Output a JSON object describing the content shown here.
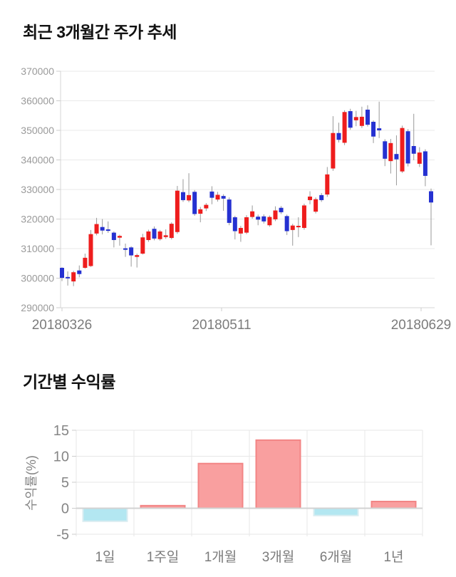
{
  "page": {
    "background": "#ffffff"
  },
  "chart_data": [
    {
      "type": "candlestick",
      "title": "최근 3개월간 주가 추세",
      "ylabel": "",
      "xlabel": "",
      "ylim": [
        290000,
        370000
      ],
      "yticks": [
        370000,
        360000,
        350000,
        340000,
        330000,
        320000,
        310000,
        300000,
        290000
      ],
      "xticks": [
        "20180326",
        "20180511",
        "20180629"
      ],
      "grid": "horizontal",
      "legend": false,
      "up_color": "#ee1d1d",
      "down_color": "#2531d1",
      "wick_color": "#999999",
      "candles_ohlc": [
        [
          303500,
          303700,
          299000,
          300100
        ],
        [
          300400,
          302300,
          297500,
          300000
        ],
        [
          298900,
          302500,
          297300,
          302000
        ],
        [
          302600,
          304300,
          300300,
          301400
        ],
        [
          303500,
          308300,
          303200,
          306900
        ],
        [
          304100,
          316300,
          303800,
          314900
        ],
        [
          315100,
          320400,
          314500,
          318300
        ],
        [
          317300,
          320000,
          314800,
          316100
        ],
        [
          316500,
          319200,
          315300,
          316000
        ],
        [
          315400,
          315800,
          310400,
          312900
        ],
        [
          313700,
          314700,
          311000,
          314300
        ],
        [
          310100,
          311700,
          307200,
          309600
        ],
        [
          310400,
          310800,
          303900,
          307700
        ],
        [
          307200,
          308300,
          303600,
          307800
        ],
        [
          308300,
          315000,
          308000,
          313800
        ],
        [
          312900,
          316400,
          312300,
          315800
        ],
        [
          316700,
          317500,
          312800,
          313400
        ],
        [
          313200,
          316300,
          312700,
          315800
        ],
        [
          313900,
          316500,
          313300,
          314500
        ],
        [
          313600,
          318900,
          313100,
          318400
        ],
        [
          315600,
          331200,
          315000,
          329600
        ],
        [
          329100,
          333500,
          325800,
          326400
        ],
        [
          326300,
          335500,
          325700,
          328100
        ],
        [
          329200,
          329800,
          321100,
          321700
        ],
        [
          321800,
          324100,
          318900,
          323300
        ],
        [
          323600,
          325400,
          322700,
          324800
        ],
        [
          329300,
          331100,
          325000,
          327200
        ],
        [
          326600,
          329200,
          325900,
          328200
        ],
        [
          327800,
          328400,
          322800,
          326900
        ],
        [
          326600,
          327300,
          317900,
          318700
        ],
        [
          320600,
          321100,
          313100,
          315900
        ],
        [
          315100,
          317700,
          312300,
          317000
        ],
        [
          315400,
          321300,
          314900,
          320600
        ],
        [
          320700,
          324600,
          320100,
          322600
        ],
        [
          320800,
          321500,
          317900,
          319800
        ],
        [
          320900,
          321600,
          318500,
          319200
        ],
        [
          317900,
          321200,
          317400,
          320700
        ],
        [
          319900,
          324300,
          319300,
          322900
        ],
        [
          323800,
          324400,
          321700,
          322300
        ],
        [
          321000,
          321500,
          314600,
          315900
        ],
        [
          316300,
          318400,
          311000,
          317800
        ],
        [
          317300,
          320600,
          313900,
          317700
        ],
        [
          317000,
          325200,
          316400,
          324600
        ],
        [
          326400,
          329400,
          325000,
          327600
        ],
        [
          322500,
          327300,
          321900,
          326700
        ],
        [
          328100,
          328800,
          325800,
          326400
        ],
        [
          328300,
          337600,
          327500,
          335100
        ],
        [
          337100,
          354800,
          336300,
          349100
        ],
        [
          349100,
          352600,
          345900,
          346800
        ],
        [
          345800,
          356800,
          345000,
          356200
        ],
        [
          356500,
          357300,
          350200,
          350900
        ],
        [
          353400,
          356600,
          351400,
          354500
        ],
        [
          351500,
          358000,
          350800,
          354600
        ],
        [
          357000,
          358500,
          351300,
          351900
        ],
        [
          352900,
          353400,
          345700,
          347900
        ],
        [
          350700,
          359700,
          347400,
          350000
        ],
        [
          346300,
          347000,
          337900,
          340400
        ],
        [
          339600,
          347100,
          335400,
          345700
        ],
        [
          342000,
          348300,
          331400,
          340200
        ],
        [
          336100,
          351600,
          335600,
          350800
        ],
        [
          349700,
          350400,
          337800,
          338800
        ],
        [
          344700,
          355600,
          339900,
          342100
        ],
        [
          338700,
          344300,
          337600,
          342500
        ],
        [
          342900,
          343600,
          331100,
          334600
        ],
        [
          329400,
          330300,
          311100,
          325600
        ]
      ]
    },
    {
      "type": "bar",
      "title": "기간별 수익률",
      "ylabel": "수익률(%)",
      "xlabel": "",
      "categories": [
        "1일",
        "1주일",
        "1개월",
        "3개월",
        "6개월",
        "1년"
      ],
      "values": [
        -2.5,
        0.5,
        8.6,
        13.1,
        -1.4,
        1.3
      ],
      "yticks": [
        15,
        10,
        5,
        0,
        -5
      ],
      "ylim": [
        -5,
        15
      ],
      "grid": true,
      "legend": false,
      "positive_color": "#f99f9f",
      "positive_stroke": "#f28585",
      "negative_color": "#b3e7f1",
      "negative_stroke": "#d8ecf1"
    }
  ]
}
